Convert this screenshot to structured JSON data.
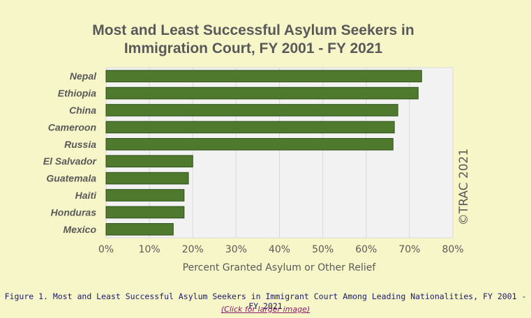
{
  "chart_data": {
    "type": "bar",
    "orientation": "horizontal",
    "title": [
      "Most and Least Successful Asylum Seekers in",
      "Immigration Court, FY 2001 - FY 2021"
    ],
    "categories": [
      "Nepal",
      "Ethiopia",
      "China",
      "Cameroon",
      "Russia",
      "El Salvador",
      "Guatemala",
      "Haiti",
      "Honduras",
      "Mexico"
    ],
    "values": [
      72.8,
      72.0,
      67.3,
      66.5,
      66.2,
      20.0,
      19.0,
      18.0,
      18.0,
      15.5
    ],
    "unit": "%",
    "xlabel": "Percent Granted Asylum or Other Relief",
    "xlim": [
      0,
      80
    ],
    "ticks": [
      "0%",
      "10%",
      "20%",
      "30%",
      "40%",
      "50%",
      "60%",
      "70%",
      "80%"
    ],
    "grid": true,
    "legend": "none",
    "bar_color": "#4f7a2e",
    "bar_edge_color": "#2f4f1a",
    "plot_background": "#f2f2f2",
    "watermark": "©TRAC 2021"
  },
  "caption": {
    "text": "Figure 1. Most and Least Successful Asylum Seekers in Immigrant Court Among Leading Nationalities, FY 2001 - FY 2021",
    "link": "(Click for larger image)"
  },
  "colors": {
    "page_background": "#f7f6c8",
    "caption_text": "#1a1a6e",
    "link": "#8b1a6b"
  }
}
